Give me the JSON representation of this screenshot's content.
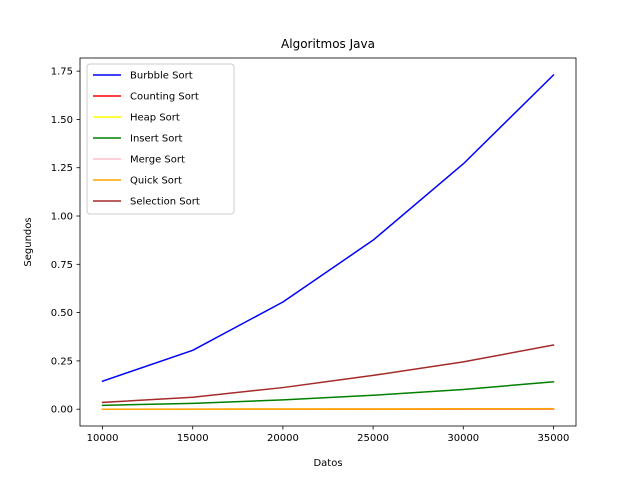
{
  "chart_data": {
    "type": "line",
    "title": "Algoritmos Java",
    "xlabel": "Datos",
    "ylabel": "Segundos",
    "x": [
      10000,
      15000,
      20000,
      25000,
      30000,
      35000
    ],
    "xticks": [
      "10000",
      "15000",
      "20000",
      "25000",
      "30000",
      "35000"
    ],
    "yticks": [
      "0.00",
      "0.25",
      "0.50",
      "0.75",
      "1.00",
      "1.25",
      "1.50",
      "1.75"
    ],
    "xlim": [
      8750,
      36250
    ],
    "ylim": [
      -0.087,
      1.818
    ],
    "grid": false,
    "legend_position": "upper-left",
    "series": [
      {
        "name": "Burbble Sort",
        "color": "#0000ff",
        "values": [
          0.145,
          0.305,
          0.555,
          0.875,
          1.27,
          1.73
        ]
      },
      {
        "name": "Counting Sort",
        "color": "#ff0000",
        "values": [
          0.0,
          0.0,
          0.0,
          0.0,
          0.001,
          0.001
        ]
      },
      {
        "name": "Heap Sort",
        "color": "#ffff00",
        "values": [
          0.0,
          0.0,
          0.001,
          0.001,
          0.002,
          0.002
        ]
      },
      {
        "name": "Insert Sort",
        "color": "#008000",
        "values": [
          0.02,
          0.03,
          0.048,
          0.072,
          0.102,
          0.142
        ]
      },
      {
        "name": "Merge Sort",
        "color": "#ffc0cb",
        "values": [
          0.0,
          0.001,
          0.001,
          0.002,
          0.002,
          0.003
        ]
      },
      {
        "name": "Quick Sort",
        "color": "#ffa500",
        "values": [
          0.0,
          0.0,
          0.001,
          0.001,
          0.002,
          0.002
        ]
      },
      {
        "name": "Selection Sort",
        "color": "#a52a2a",
        "values": [
          0.035,
          0.062,
          0.112,
          0.175,
          0.245,
          0.332
        ]
      }
    ]
  }
}
